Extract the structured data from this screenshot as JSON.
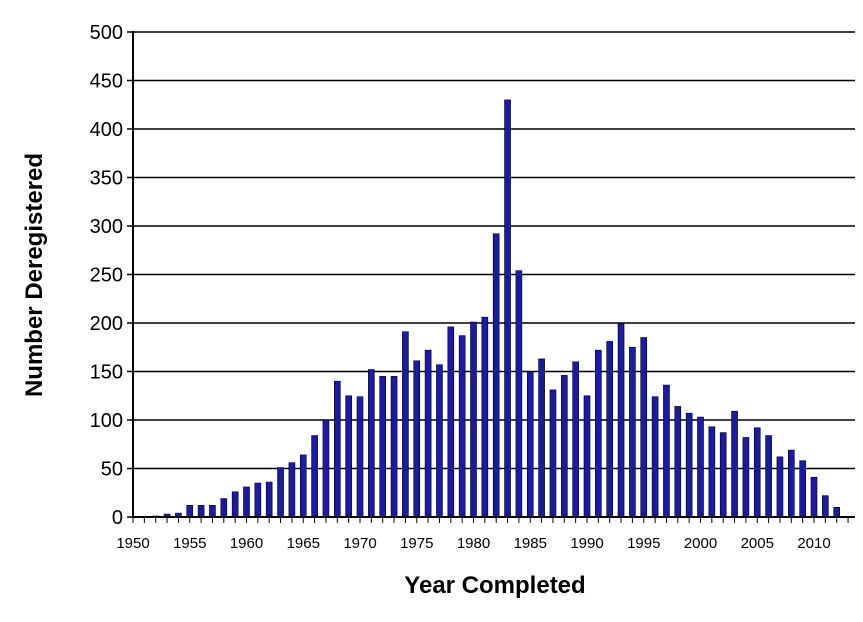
{
  "chart_data": {
    "type": "bar",
    "title": "",
    "xlabel": "Year Completed",
    "ylabel": "Number Deregistered",
    "ylim": [
      0,
      500
    ],
    "yticks": [
      0,
      50,
      100,
      150,
      200,
      250,
      300,
      350,
      400,
      450,
      500
    ],
    "xlim": [
      1950,
      2013
    ],
    "xticks": [
      1950,
      1955,
      1960,
      1965,
      1970,
      1975,
      1980,
      1985,
      1990,
      1995,
      2000,
      2005,
      2010
    ],
    "grid": "horizontal",
    "legend": "none",
    "bar_color": "#1a1aa6",
    "x": [
      1951,
      1952,
      1953,
      1954,
      1955,
      1956,
      1957,
      1958,
      1959,
      1960,
      1961,
      1962,
      1963,
      1964,
      1965,
      1966,
      1967,
      1968,
      1969,
      1970,
      1971,
      1972,
      1973,
      1974,
      1975,
      1976,
      1977,
      1978,
      1979,
      1980,
      1981,
      1982,
      1983,
      1984,
      1985,
      1986,
      1987,
      1988,
      1989,
      1990,
      1991,
      1992,
      1993,
      1994,
      1995,
      1996,
      1997,
      1998,
      1999,
      2000,
      2001,
      2002,
      2003,
      2004,
      2005,
      2006,
      2007,
      2008,
      2009,
      2010,
      2011,
      2012
    ],
    "values": [
      0,
      1,
      3,
      4,
      12,
      12,
      12,
      19,
      26,
      31,
      35,
      36,
      51,
      56,
      64,
      84,
      100,
      140,
      125,
      124,
      152,
      145,
      145,
      191,
      161,
      172,
      157,
      196,
      187,
      201,
      206,
      292,
      430,
      254,
      149,
      163,
      131,
      146,
      160,
      125,
      172,
      181,
      199,
      175,
      185,
      124,
      136,
      114,
      107,
      103,
      93,
      87,
      109,
      82,
      92,
      84,
      62,
      69,
      58,
      41,
      22,
      10
    ]
  }
}
